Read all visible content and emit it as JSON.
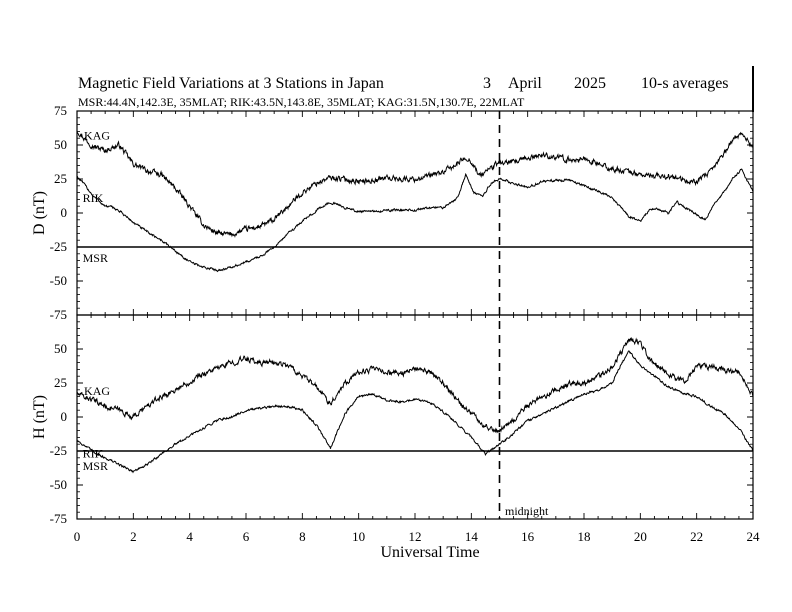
{
  "chart_data": {
    "type": "line",
    "title": {
      "main": "Magnetic Field Variations at 3 Stations in Japan",
      "day": "3",
      "month": "April",
      "year": "2025",
      "averaging": "10-s averages"
    },
    "subtitle": "MSR:44.4N,142.3E, 35MLAT;  RIK:43.5N,143.8E, 35MLAT;  KAG:31.5N,130.7E, 22MLAT",
    "xlabel": "Universal Time",
    "xlim": [
      0,
      24
    ],
    "xticks": [
      0,
      2,
      4,
      6,
      8,
      10,
      12,
      14,
      16,
      18,
      20,
      22,
      24
    ],
    "midnight": {
      "x": 15,
      "label": "midnight"
    },
    "panels": [
      {
        "id": "D",
        "ylabel": "D (nT)",
        "ylim": [
          -75,
          75
        ],
        "yticks": [
          75,
          50,
          25,
          0,
          -25,
          -50,
          -75
        ],
        "baseline": -25,
        "station_labels": [
          {
            "text": "KAG",
            "x": 0.25,
            "y": 57
          },
          {
            "text": "RIK",
            "x": 0.2,
            "y": 11
          },
          {
            "text": "MSR",
            "x": 0.2,
            "y": -33
          }
        ],
        "series": [
          {
            "name": "KAG",
            "noise": 1.6,
            "x": [
              0,
              0.3,
              0.6,
              1.0,
              1.5,
              2.0,
              2.5,
              3.0,
              3.5,
              4.0,
              4.5,
              5.0,
              5.5,
              6.0,
              6.5,
              7.0,
              7.5,
              8.0,
              8.5,
              9.0,
              9.5,
              10.0,
              10.5,
              11.0,
              11.5,
              12.0,
              12.5,
              13.0,
              13.5,
              13.8,
              14.0,
              14.3,
              14.6,
              15.0,
              15.5,
              16.0,
              16.5,
              17.0,
              17.5,
              18.0,
              18.5,
              19.0,
              19.5,
              20.0,
              20.5,
              21.0,
              21.5,
              22.0,
              22.5,
              23.0,
              23.3,
              23.6,
              24.0
            ],
            "y": [
              61,
              54,
              49,
              46,
              50,
              36,
              31,
              28,
              18,
              5,
              -9,
              -15,
              -16,
              -12,
              -10,
              -5,
              5,
              15,
              22,
              26,
              25,
              23,
              24,
              26,
              25,
              25,
              27,
              30,
              36,
              41,
              38,
              27,
              32,
              37,
              37,
              40,
              43,
              41,
              39,
              40,
              36,
              32,
              31,
              28,
              27,
              27,
              24,
              23,
              30,
              45,
              54,
              59,
              48
            ]
          },
          {
            "name": "RIK",
            "noise": 0.7,
            "x": [
              0,
              0.3,
              0.6,
              1.0,
              1.3,
              1.6,
              2.0,
              2.5,
              3.0,
              3.5,
              4.0,
              4.5,
              5.0,
              5.5,
              6.0,
              6.5,
              7.0,
              7.5,
              8.0,
              8.5,
              9.0,
              9.5,
              10.0,
              10.5,
              11.0,
              11.5,
              12.0,
              12.5,
              13.0,
              13.5,
              13.8,
              14.1,
              14.4,
              14.7,
              15.0,
              15.5,
              16.0,
              16.5,
              17.0,
              17.5,
              18.0,
              18.5,
              19.0,
              19.3,
              19.6,
              20.0,
              20.3,
              20.6,
              21.0,
              21.3,
              21.6,
              22.0,
              22.3,
              22.6,
              23.0,
              23.3,
              23.6,
              24.0
            ],
            "y": [
              27,
              20,
              12,
              5,
              4,
              0,
              -7,
              -14,
              -20,
              -28,
              -36,
              -40,
              -42,
              -40,
              -36,
              -32,
              -25,
              -15,
              -6,
              2,
              8,
              4,
              1,
              1,
              2,
              2,
              2,
              4,
              4,
              11,
              28,
              15,
              12,
              22,
              25,
              22,
              19,
              23,
              24,
              24,
              20,
              16,
              11,
              4,
              -3,
              -6,
              2,
              3,
              0,
              8,
              4,
              -1,
              -5,
              6,
              16,
              26,
              32,
              16
            ]
          }
        ]
      },
      {
        "id": "H",
        "ylabel": "H (nT)",
        "ylim": [
          -75,
          75
        ],
        "yticks": [
          75,
          50,
          25,
          0,
          -25,
          -50,
          -75
        ],
        "baseline": -25,
        "station_labels": [
          {
            "text": "KAG",
            "x": 0.25,
            "y": 19
          },
          {
            "text": "RIK",
            "x": 0.2,
            "y": -27
          },
          {
            "text": "MSR",
            "x": 0.2,
            "y": -36
          }
        ],
        "series": [
          {
            "name": "KAG",
            "noise": 1.6,
            "x": [
              0,
              0.5,
              1.0,
              1.5,
              2.0,
              2.5,
              3.0,
              3.5,
              4.0,
              4.5,
              5.0,
              5.5,
              6.0,
              6.5,
              7.0,
              7.5,
              8.0,
              8.5,
              9.0,
              9.5,
              10.0,
              10.5,
              11.0,
              11.5,
              12.0,
              12.5,
              13.0,
              13.5,
              14.0,
              14.5,
              15.0,
              15.5,
              16.0,
              16.5,
              17.0,
              17.5,
              18.0,
              18.5,
              19.0,
              19.3,
              19.6,
              20.0,
              20.3,
              20.6,
              21.0,
              21.3,
              21.6,
              22.0,
              22.5,
              23.0,
              23.5,
              24.0
            ],
            "y": [
              17,
              13,
              8,
              5,
              0,
              8,
              15,
              20,
              26,
              32,
              36,
              40,
              43,
              40,
              40,
              38,
              30,
              22,
              10,
              25,
              33,
              35,
              33,
              32,
              35,
              33,
              25,
              12,
              3,
              -7,
              -10,
              -2,
              8,
              14,
              20,
              24,
              25,
              30,
              37,
              47,
              57,
              55,
              43,
              38,
              32,
              28,
              27,
              37,
              37,
              35,
              33,
              15
            ]
          },
          {
            "name": "RIK",
            "noise": 0.7,
            "x": [
              0,
              0.4,
              0.8,
              1.2,
              1.6,
              2.0,
              2.5,
              3.0,
              3.5,
              4.0,
              4.5,
              5.0,
              5.5,
              6.0,
              6.5,
              7.0,
              7.5,
              8.0,
              8.5,
              9.0,
              9.5,
              10.0,
              10.5,
              11.0,
              11.5,
              12.0,
              12.5,
              13.0,
              13.5,
              14.0,
              14.5,
              15.0,
              15.5,
              16.0,
              16.5,
              17.0,
              17.5,
              18.0,
              18.5,
              19.0,
              19.3,
              19.6,
              20.0,
              20.5,
              21.0,
              21.5,
              22.0,
              22.5,
              23.0,
              23.5,
              24.0
            ],
            "y": [
              -17,
              -23,
              -28,
              -32,
              -36,
              -40,
              -35,
              -27,
              -20,
              -14,
              -8,
              -2,
              0,
              5,
              6,
              8,
              8,
              5,
              -6,
              -23,
              2,
              15,
              17,
              12,
              11,
              13,
              11,
              4,
              -5,
              -15,
              -27,
              -20,
              -12,
              -3,
              2,
              7,
              12,
              17,
              20,
              25,
              38,
              48,
              38,
              30,
              22,
              18,
              15,
              8,
              2,
              -8,
              -25
            ]
          }
        ]
      }
    ]
  }
}
